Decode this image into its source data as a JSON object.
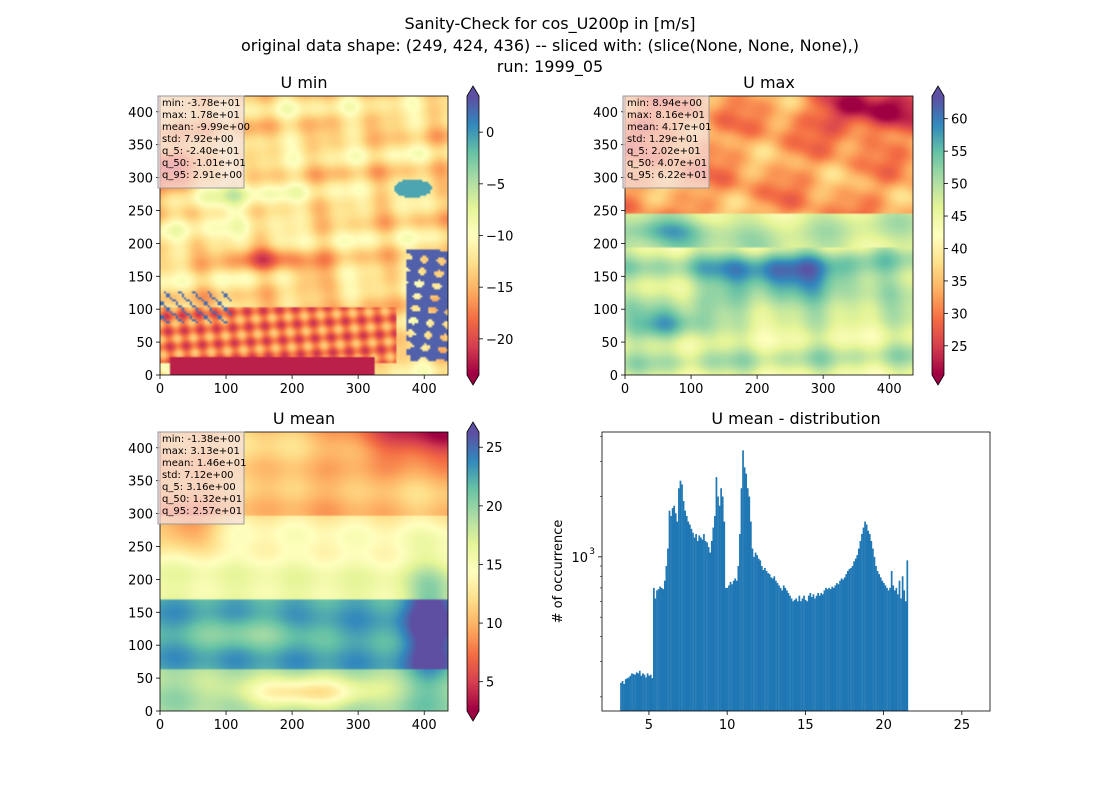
{
  "figure": {
    "title_line1": "Sanity-Check for cos_U200p in [m/s]",
    "title_line2": "original data shape: (249, 424, 436) -- sliced with: (slice(None, None, None),)",
    "title_line3": "run: 1999_05"
  },
  "colors": {
    "spectral": [
      "#9e0142",
      "#d53e4f",
      "#f46d43",
      "#fdae61",
      "#fee08b",
      "#ffffbf",
      "#e6f598",
      "#abdda4",
      "#66c2a5",
      "#3288bd",
      "#5e4fa2"
    ],
    "hist_bar": "#1f77b4",
    "stats_box_bg": "#f5dede",
    "stats_box_border": "#999999"
  },
  "chart_data": [
    {
      "type": "heatmap",
      "title": "U min",
      "colormap": "Spectral",
      "xlim": [
        0,
        436
      ],
      "ylim": [
        0,
        424
      ],
      "xticks": [
        "0",
        "100",
        "200",
        "300",
        "400"
      ],
      "yticks": [
        "0",
        "50",
        "100",
        "150",
        "200",
        "250",
        "300",
        "350",
        "400"
      ],
      "colorbar_range": [
        -23.5,
        3.5
      ],
      "colorbar_ticks": [
        "0",
        "−5",
        "−10",
        "−15",
        "−20"
      ],
      "colorbar_extend": "both",
      "stats": [
        "min: -3.78e+01",
        "max: 1.78e+01",
        "mean: -9.99e+00",
        "std: 7.92e+00",
        "q_5: -2.40e+01",
        "q_50: -1.01e+01",
        "q_95: 2.91e+00"
      ]
    },
    {
      "type": "heatmap",
      "title": "U max",
      "colormap": "Spectral",
      "xlim": [
        0,
        436
      ],
      "ylim": [
        0,
        424
      ],
      "xticks": [
        "0",
        "100",
        "200",
        "300",
        "400"
      ],
      "yticks": [
        "0",
        "50",
        "100",
        "150",
        "200",
        "250",
        "300",
        "350",
        "400"
      ],
      "colorbar_range": [
        20.5,
        63.5
      ],
      "colorbar_ticks": [
        "25",
        "30",
        "35",
        "40",
        "45",
        "50",
        "55",
        "60"
      ],
      "colorbar_extend": "both",
      "stats": [
        "min: 8.94e+00",
        "max: 8.16e+01",
        "mean: 4.17e+01",
        "std: 1.29e+01",
        "q_5: 2.02e+01",
        "q_50: 4.07e+01",
        "q_95: 6.22e+01"
      ]
    },
    {
      "type": "heatmap",
      "title": "U mean",
      "colormap": "Spectral",
      "xlim": [
        0,
        436
      ],
      "ylim": [
        0,
        424
      ],
      "xticks": [
        "0",
        "100",
        "200",
        "300",
        "400"
      ],
      "yticks": [
        "0",
        "50",
        "100",
        "150",
        "200",
        "250",
        "300",
        "350",
        "400"
      ],
      "colorbar_range": [
        2.5,
        26.3
      ],
      "colorbar_ticks": [
        "5",
        "10",
        "15",
        "20",
        "25"
      ],
      "colorbar_extend": "both",
      "stats": [
        "min: -1.38e+00",
        "max: 3.13e+01",
        "mean: 1.46e+01",
        "std: 7.12e+00",
        "q_5: 3.16e+00",
        "q_50: 1.32e+01",
        "q_95: 2.57e+01"
      ]
    },
    {
      "type": "bar",
      "title": "U mean - distribution",
      "ylabel": "# of occurrence",
      "yscale": "log",
      "xlim": [
        2.0,
        26.8
      ],
      "ylim": [
        170,
        4200
      ],
      "xticks": [
        "5",
        "10",
        "15",
        "20",
        "25"
      ],
      "ytick_label": "10",
      "ytick_exp": "3",
      "bin_start": 3.16,
      "bin_width": 0.1,
      "values": [
        235,
        240,
        232,
        245,
        248,
        250,
        255,
        262,
        260,
        258,
        265,
        262,
        270,
        255,
        262,
        258,
        250,
        262,
        255,
        258,
        248,
        700,
        620,
        680,
        690,
        710,
        700,
        690,
        760,
        900,
        1100,
        1700,
        1600,
        1750,
        1800,
        1650,
        1500,
        2200,
        2400,
        2300,
        1900,
        1700,
        1600,
        1500,
        1450,
        1380,
        1320,
        1250,
        1300,
        1200,
        1280,
        1250,
        1220,
        1300,
        1200,
        1180,
        1120,
        1050,
        1200,
        1400,
        1600,
        2500,
        2000,
        1800,
        2200,
        2000,
        1500,
        700,
        700,
        720,
        750,
        730,
        760,
        780,
        760,
        900,
        1300,
        2200,
        3400,
        2800,
        2600,
        2200,
        2000,
        1500,
        1100,
        1000,
        1050,
        1020,
        980,
        960,
        900,
        860,
        880,
        850,
        830,
        820,
        790,
        780,
        800,
        760,
        740,
        720,
        700,
        680,
        720,
        700,
        680,
        660,
        640,
        620,
        600,
        610,
        620,
        600,
        640,
        600,
        620,
        640,
        610,
        600,
        640,
        660,
        630,
        650,
        620,
        640,
        660,
        640,
        660,
        650,
        680,
        700,
        690,
        700,
        690,
        710,
        700,
        720,
        740,
        730,
        760,
        780,
        770,
        790,
        820,
        850,
        870,
        880,
        900,
        950,
        980,
        1020,
        1100,
        1200,
        1300,
        1400,
        1500,
        1450,
        1350,
        1300,
        1200,
        1100,
        1000,
        900,
        850,
        820,
        790,
        760,
        740,
        720,
        700,
        680,
        700,
        850,
        720,
        680,
        700,
        650,
        760,
        620,
        800,
        680,
        600,
        960
      ]
    }
  ]
}
